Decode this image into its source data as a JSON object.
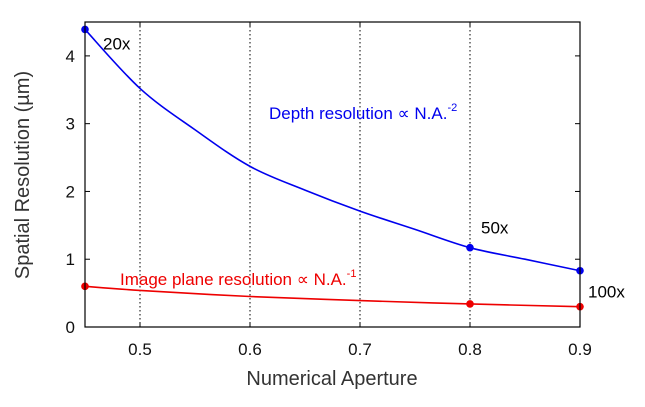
{
  "chart_data": {
    "type": "line",
    "xlabel": "Numerical Aperture",
    "ylabel": "Spatial Resolution (µm)",
    "xlim": [
      0.45,
      0.9
    ],
    "ylim": [
      0,
      4.5
    ],
    "xticks": [
      "0.5",
      "0.6",
      "0.7",
      "0.8",
      "0.9"
    ],
    "yticks": [
      "0",
      "1",
      "2",
      "3",
      "4"
    ],
    "vertical_grid": "dotted at x = 0.5, 0.6, 0.7, 0.8",
    "series": [
      {
        "color": "#0000ee",
        "x": [
          0.45,
          0.5,
          0.55,
          0.6,
          0.65,
          0.7,
          0.75,
          0.8,
          0.85,
          0.9
        ],
        "y": [
          4.39,
          3.52,
          2.91,
          2.37,
          2.02,
          1.71,
          1.44,
          1.17,
          1.0,
          0.83
        ],
        "markers": [
          {
            "x": 0.45,
            "y": 4.39,
            "label": "20x"
          },
          {
            "x": 0.8,
            "y": 1.17,
            "label": "50x"
          },
          {
            "x": 0.9,
            "y": 0.83,
            "label": "100x"
          }
        ],
        "annotation": {
          "text": "Depth resolution ∝ N.A.",
          "sup": "-2"
        }
      },
      {
        "color": "#ee0000",
        "x": [
          0.45,
          0.5,
          0.6,
          0.7,
          0.8,
          0.9
        ],
        "y": [
          0.6,
          0.54,
          0.45,
          0.39,
          0.34,
          0.3
        ],
        "markers": [
          {
            "x": 0.45,
            "y": 0.6
          },
          {
            "x": 0.8,
            "y": 0.34
          },
          {
            "x": 0.9,
            "y": 0.3
          }
        ],
        "annotation": {
          "text": "Image plane resolution ∝ N.A.",
          "sup": "-1"
        }
      }
    ]
  }
}
